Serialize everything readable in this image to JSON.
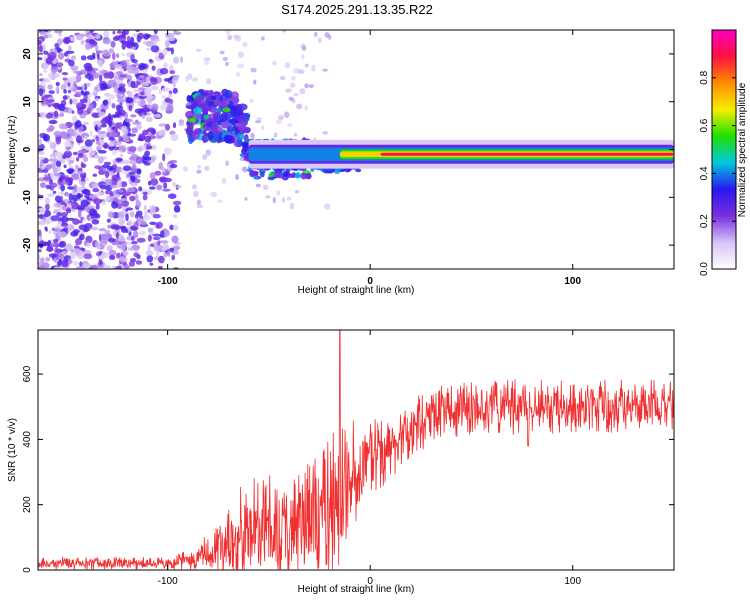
{
  "title": "S174.2025.291.13.35.R22",
  "chart_data": [
    {
      "type": "heatmap",
      "name": "spectrogram",
      "xlabel": "Height of straight line (km)",
      "ylabel": "Frequency (Hz)",
      "xlim": [
        -164,
        150
      ],
      "ylim": [
        -25,
        25
      ],
      "xticks": [
        -100,
        0,
        100
      ],
      "yticks": [
        -20,
        -10,
        0,
        10,
        20
      ],
      "colorbar": {
        "label": "Normalized spectral amplitude",
        "range": [
          0.0,
          1.0
        ],
        "ticks": [
          0.0,
          0.2,
          0.4,
          0.6,
          0.8
        ],
        "tick_labels": [
          "0.0",
          "0.2",
          "0.4",
          "0.6",
          "0.8"
        ],
        "colormap": [
          "#ffffff",
          "#d6c3f5",
          "#7a2fe0",
          "#2a17f0",
          "#00c8e0",
          "#1ee000",
          "#f5ee00",
          "#ff8c00",
          "#ff1040",
          "#ff00c0"
        ]
      },
      "features": {
        "noise_region_km": [
          -164,
          -95
        ],
        "blob_region_km": [
          -90,
          -60
        ],
        "blob_center_hz": 7,
        "signal_line_start_km": -60,
        "signal_line_freq_hz": -1,
        "signal_line_peak_amplitude": 0.9
      }
    },
    {
      "type": "line",
      "name": "snr",
      "xlabel": "Height of straight line (km)",
      "ylabel": "SNR (10 * v/v)",
      "xlim": [
        -164,
        150
      ],
      "ylim": [
        0,
        735
      ],
      "xticks": [
        -100,
        0,
        100
      ],
      "yticks": [
        0,
        200,
        400,
        600
      ],
      "color": "#f03030",
      "spike": {
        "x": -15,
        "y": 735
      },
      "dip": {
        "x": 78,
        "y": 380
      },
      "envelope": {
        "x": [
          -164,
          -100,
          -85,
          -75,
          -60,
          -45,
          -30,
          -20,
          -10,
          0,
          10,
          20,
          30,
          50,
          80,
          150
        ],
        "base": [
          20,
          20,
          30,
          60,
          110,
          120,
          150,
          180,
          260,
          350,
          360,
          420,
          470,
          500,
          500,
          505
        ],
        "amp": [
          20,
          20,
          40,
          120,
          180,
          170,
          200,
          260,
          200,
          120,
          90,
          100,
          90,
          90,
          85,
          80
        ]
      }
    }
  ]
}
